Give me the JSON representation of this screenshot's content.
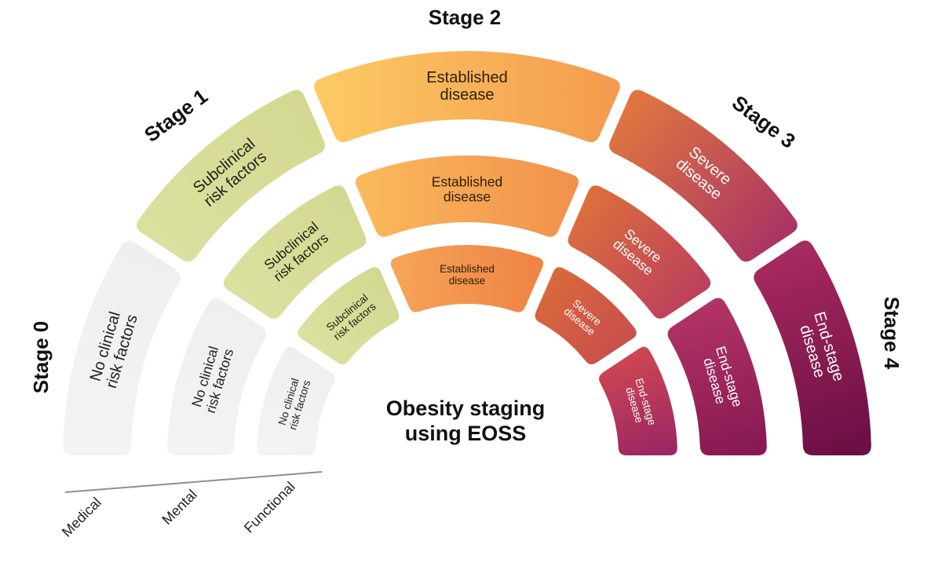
{
  "title": {
    "line1": "Obesity staging",
    "line2": "using EOSS"
  },
  "diagram": {
    "rings": [
      {
        "id": "medical",
        "axis_label": "Medical"
      },
      {
        "id": "mental",
        "axis_label": "Mental"
      },
      {
        "id": "functional",
        "axis_label": "Functional"
      }
    ],
    "stages": [
      {
        "label": "Stage 0",
        "segment_lines": [
          "No clinical",
          "risk factors"
        ],
        "text_color": "#1f1f1f",
        "fills": [
          [
            "#f3f3f5",
            "#efeff1"
          ],
          [
            "#f3f3f5",
            "#efeff1"
          ],
          [
            "#f3f3f5",
            "#efeff1"
          ]
        ]
      },
      {
        "label": "Stage 1",
        "segment_lines": [
          "Subclinical",
          "risk factors"
        ],
        "text_color": "#1e1e12",
        "fills": [
          [
            "#dce09f",
            "#d3d891"
          ],
          [
            "#dce09f",
            "#d3d891"
          ],
          [
            "#dce09f",
            "#d3d891"
          ]
        ]
      },
      {
        "label": "Stage 2",
        "segment_lines": [
          "Established",
          "disease"
        ],
        "text_color": "#2e1f08",
        "fills": [
          [
            "#fcca63",
            "#f49b4f"
          ],
          [
            "#fab95c",
            "#f1914c"
          ],
          [
            "#f6a458",
            "#ee8345"
          ]
        ]
      },
      {
        "label": "Stage 3",
        "segment_lines": [
          "Severe",
          "disease"
        ],
        "text_color": "#ffffff",
        "fills": [
          [
            "#e0773f",
            "#a93365"
          ],
          [
            "#dd6f3c",
            "#bc3f5c"
          ],
          [
            "#da693a",
            "#c84f4f"
          ]
        ]
      },
      {
        "label": "Stage 4",
        "segment_lines": [
          "End-stage",
          "disease"
        ],
        "text_color": "#ffffff",
        "fills": [
          [
            "#a82a60",
            "#6b0f44"
          ],
          [
            "#b23365",
            "#871a52"
          ],
          [
            "#cf4751",
            "#9c2763"
          ]
        ]
      }
    ]
  }
}
